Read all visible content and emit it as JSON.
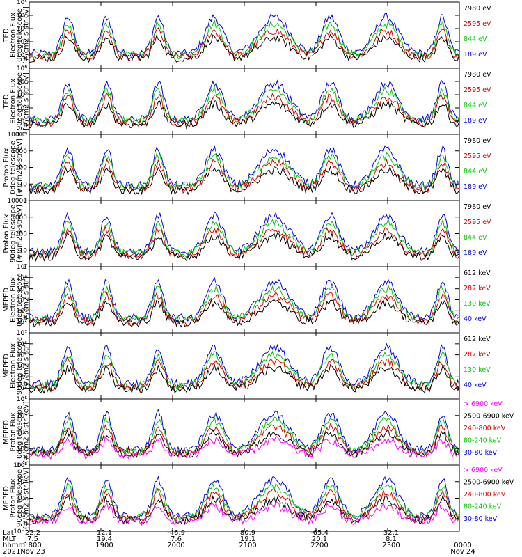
{
  "chart_data": [
    {
      "type": "line",
      "ylabel_lines": [
        "TED",
        "Electron Flux",
        "0deg telescope",
        "[#/cm2-s-str-eV]"
      ],
      "yscale": "log",
      "ylim": [
        1,
        100000
      ],
      "yticks": [
        "10⁰",
        "10¹",
        "10²",
        "10³",
        "10⁴",
        "10⁵"
      ],
      "ytick_values": [
        1,
        10,
        100,
        1000,
        10000,
        100000
      ],
      "series": [
        {
          "name": "7980 eV",
          "color": "#000000"
        },
        {
          "name": "2595 eV",
          "color": "#e00000"
        },
        {
          "name": "844 eV",
          "color": "#00c800"
        },
        {
          "name": "189 eV",
          "color": "#0000e0"
        }
      ]
    },
    {
      "type": "line",
      "ylabel_lines": [
        "TED",
        "Electron Flux",
        "90deg telescope",
        "[#/cm2-s-str-eV]"
      ],
      "yscale": "log",
      "ylim": [
        1,
        100000
      ],
      "yticks": [
        "10⁰",
        "10¹",
        "10²",
        "10³",
        "10⁴",
        "10⁵"
      ],
      "ytick_values": [
        1,
        10,
        100,
        1000,
        10000,
        100000
      ],
      "series": [
        {
          "name": "7980 eV",
          "color": "#000000"
        },
        {
          "name": "2595 eV",
          "color": "#e00000"
        },
        {
          "name": "844 eV",
          "color": "#00c800"
        },
        {
          "name": "189 eV",
          "color": "#0000e0"
        }
      ]
    },
    {
      "type": "line",
      "ylabel_lines": [
        "Proton Flux",
        "0deg telescope",
        "[#/cm2-s-str-eV]"
      ],
      "yscale": "log",
      "ylim": [
        1,
        10000
      ],
      "yticks": [
        "1",
        "10",
        "100",
        "1000",
        "10000"
      ],
      "ytick_values": [
        1,
        10,
        100,
        1000,
        10000
      ],
      "series": [
        {
          "name": "7980 eV",
          "color": "#000000"
        },
        {
          "name": "2595 eV",
          "color": "#e00000"
        },
        {
          "name": "844 eV",
          "color": "#00c800"
        },
        {
          "name": "189 eV",
          "color": "#0000e0"
        }
      ]
    },
    {
      "type": "line",
      "ylabel_lines": [
        "Proton Flux",
        "90deg telescope",
        "[#/cm2-s-str-eV]"
      ],
      "yscale": "log",
      "ylim": [
        1,
        10000
      ],
      "yticks": [
        "1",
        "10",
        "100",
        "1000",
        "10000"
      ],
      "ytick_values": [
        1,
        10,
        100,
        1000,
        10000
      ],
      "series": [
        {
          "name": "7980 eV",
          "color": "#000000"
        },
        {
          "name": "2595 eV",
          "color": "#e00000"
        },
        {
          "name": "844 eV",
          "color": "#00c800"
        },
        {
          "name": "189 eV",
          "color": "#0000e0"
        }
      ]
    },
    {
      "type": "line",
      "ylabel_lines": [
        "MEPED",
        "Electron Flux",
        "0deg telescope",
        "[#/cm2-s-str]"
      ],
      "yscale": "log",
      "ylim": [
        10,
        10000000
      ],
      "yticks": [
        "10¹",
        "10²",
        "10³",
        "10⁴",
        "10⁵",
        "10⁶",
        "10⁷"
      ],
      "ytick_values": [
        10,
        100,
        1000,
        10000,
        100000,
        1000000,
        10000000
      ],
      "series": [
        {
          "name": "612 keV",
          "color": "#000000"
        },
        {
          "name": "287 keV",
          "color": "#e00000"
        },
        {
          "name": "130 keV",
          "color": "#00c800"
        },
        {
          "name": "40 keV",
          "color": "#0000e0"
        }
      ]
    },
    {
      "type": "line",
      "ylabel_lines": [
        "MEPED",
        "Electron Flux",
        "90deg telescope",
        "[#/cm2-s-str]"
      ],
      "yscale": "log",
      "ylim": [
        10,
        10000000
      ],
      "yticks": [
        "10¹",
        "10²",
        "10³",
        "10⁴",
        "10⁵",
        "10⁶",
        "10⁷"
      ],
      "ytick_values": [
        10,
        100,
        1000,
        10000,
        100000,
        1000000,
        10000000
      ],
      "series": [
        {
          "name": "612 keV",
          "color": "#000000"
        },
        {
          "name": "287 keV",
          "color": "#e00000"
        },
        {
          "name": "130 keV",
          "color": "#00c800"
        },
        {
          "name": "40 keV",
          "color": "#0000e0"
        }
      ]
    },
    {
      "type": "line",
      "ylabel_lines": [
        "MEPED",
        "Proton Flux",
        "0deg telescope",
        "[#/cm2-s-str-keV]"
      ],
      "yscale": "log",
      "ylim": [
        0.01,
        1000000
      ],
      "yticks": [
        "10⁻²",
        "10⁰",
        "10²",
        "10⁴",
        "10⁶"
      ],
      "ytick_values": [
        0.01,
        1,
        100,
        10000,
        1000000
      ],
      "series": [
        {
          "name": "> 6900 keV",
          "color": "#ff00ff"
        },
        {
          "name": "2500-6900 keV",
          "color": "#000000"
        },
        {
          "name": "240-800 keV",
          "color": "#e00000"
        },
        {
          "name": "80-240 keV",
          "color": "#00c800"
        },
        {
          "name": "30-80 keV",
          "color": "#0000e0"
        }
      ]
    },
    {
      "type": "line",
      "ylabel_lines": [
        "MEPED",
        "Proton Flux",
        "90deg telescope",
        "[#/cm2-s-str-keV]"
      ],
      "yscale": "log",
      "ylim": [
        0.01,
        1000000
      ],
      "yticks": [
        "10⁻²",
        "10⁰",
        "10²",
        "10⁴",
        "10⁶"
      ],
      "ytick_values": [
        0.01,
        1,
        100,
        10000,
        1000000
      ],
      "series": [
        {
          "name": "> 6900 keV",
          "color": "#ff00ff"
        },
        {
          "name": "2500-6900 keV",
          "color": "#000000"
        },
        {
          "name": "240-800 keV",
          "color": "#e00000"
        },
        {
          "name": "80-240 keV",
          "color": "#00c800"
        },
        {
          "name": "30-80 keV",
          "color": "#0000e0"
        }
      ]
    }
  ],
  "time_axis": {
    "x_range_hhmm": [
      "1800",
      "0000"
    ],
    "row_labels": [
      "Lat",
      "MLT",
      "hhmm",
      "2021"
    ],
    "ticks": [
      {
        "lat": "22.2",
        "mlt": "7.5",
        "hhmm": "1800",
        "date": "Nov 23"
      },
      {
        "lat": "12.1",
        "mlt": "19.4",
        "hhmm": "1900",
        "date": ""
      },
      {
        "lat": "-46.9",
        "mlt": "7.6",
        "hhmm": "2000",
        "date": ""
      },
      {
        "lat": "80.9",
        "mlt": "19.1",
        "hhmm": "2100",
        "date": ""
      },
      {
        "lat": "-65.4",
        "mlt": "20.1",
        "hhmm": "2200",
        "date": ""
      },
      {
        "lat": "32.1",
        "mlt": "8.1",
        "hhmm": "2300",
        "date": ""
      },
      {
        "lat": "",
        "mlt": "",
        "hhmm": "0000",
        "date": "Nov 24"
      }
    ]
  }
}
